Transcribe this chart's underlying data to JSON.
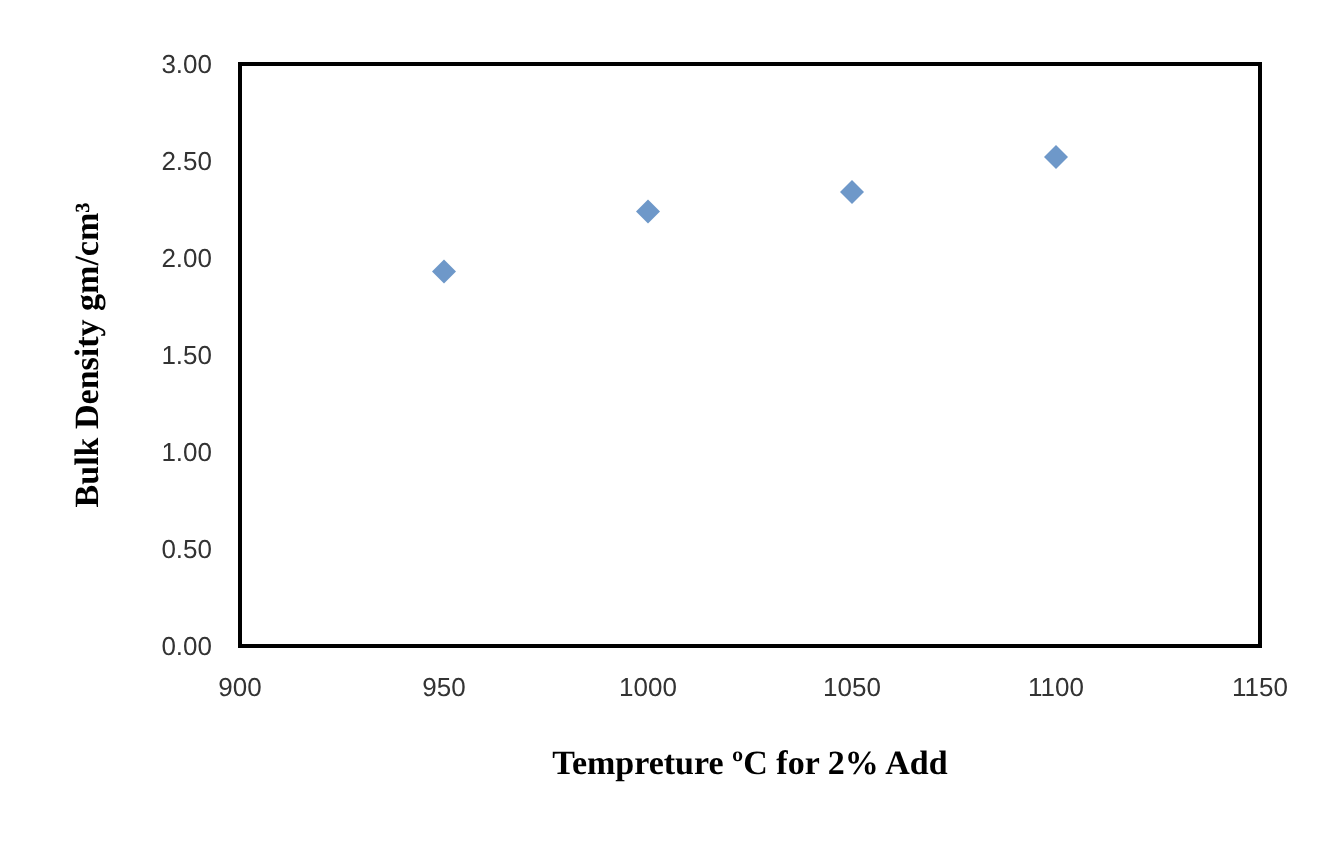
{
  "chart_data": {
    "type": "scatter",
    "xlabel": "Tempreture ºC for 2% Add",
    "ylabel": "Bulk Density gm/cm³",
    "x": [
      950,
      1000,
      1050,
      1100
    ],
    "series": [
      {
        "color": "#4a7ebb",
        "values": [
          1.93,
          2.24,
          2.34,
          2.52
        ]
      }
    ],
    "xlim": [
      900,
      1150
    ],
    "xticks": [
      900,
      950,
      1000,
      1050,
      1100,
      1150
    ],
    "ylim": [
      0,
      3
    ],
    "yticks": [
      {
        "value": 0,
        "label": "0.00"
      },
      {
        "value": 0.5,
        "label": "0.50"
      },
      {
        "value": 1,
        "label": "1.00"
      },
      {
        "value": 1.5,
        "label": "1.50"
      },
      {
        "value": 2,
        "label": "2.00"
      },
      {
        "value": 2.5,
        "label": "2.50"
      },
      {
        "value": 3,
        "label": "3.00"
      }
    ],
    "marker": "diamond",
    "grid": false
  }
}
